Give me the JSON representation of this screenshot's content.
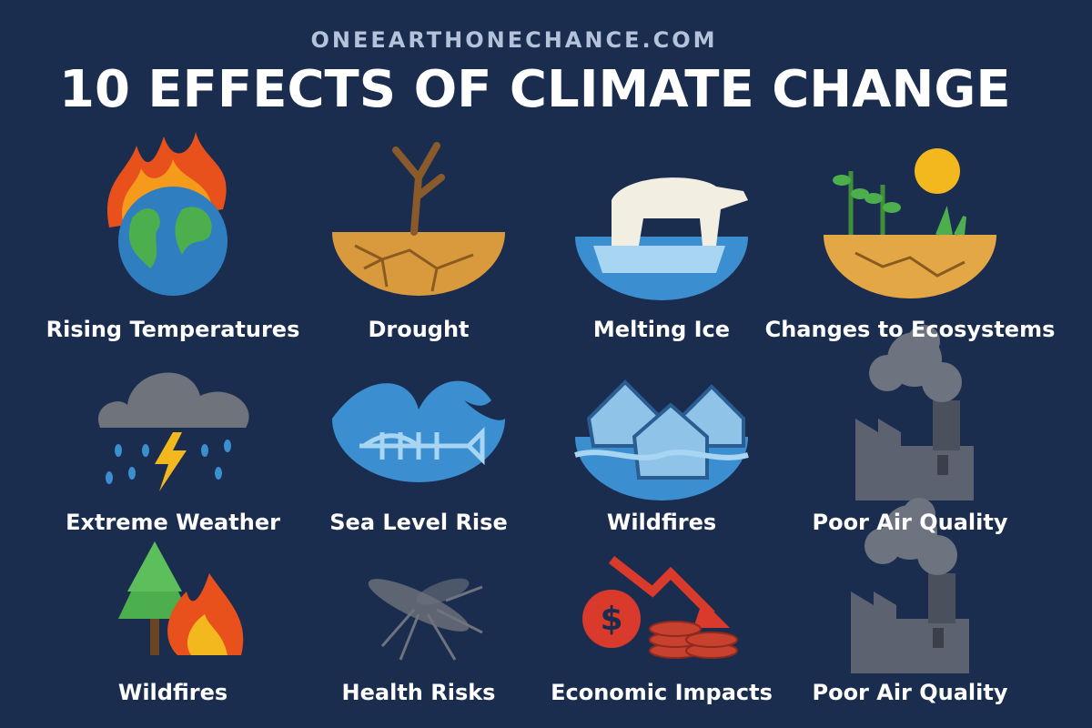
{
  "header": {
    "site": "ONEEARTHONECHANCE.COM",
    "title": "10 EFFECTS OF CLIMATE CHANGE"
  },
  "items": [
    {
      "label": "Rising Temperatures"
    },
    {
      "label": "Drought"
    },
    {
      "label": "Melting Ice"
    },
    {
      "label": "Changes to Ecosystems"
    },
    {
      "label": "Extreme Weather"
    },
    {
      "label": "Sea Level Rise"
    },
    {
      "label": "Wildfires"
    },
    {
      "label": "Poor Air Quality"
    },
    {
      "label": "Wildfires"
    },
    {
      "label": "Health Risks"
    },
    {
      "label": "Economic Impacts"
    },
    {
      "label": "Poor Air Quality"
    }
  ]
}
